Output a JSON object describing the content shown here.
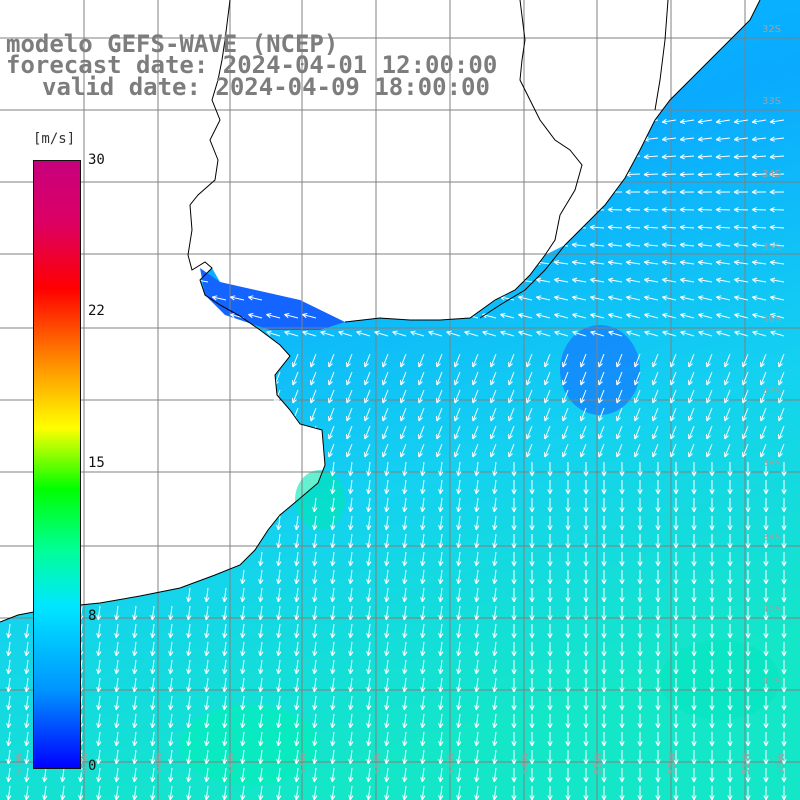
{
  "title": {
    "line1": "modelo GEFS-WAVE (NCEP)",
    "line2": "forecast date: 2024-04-01 12:00:00",
    "line3": "valid date: 2024-04-09 18:00:00"
  },
  "colorbar": {
    "units": "[m/s]",
    "ticks": [
      "30",
      "22",
      "15",
      "8",
      "0"
    ],
    "tick_values": [
      30,
      22,
      15,
      8,
      0
    ],
    "colors": [
      "#0000ff",
      "#0096ff",
      "#00e6ff",
      "#00ff96",
      "#00ff00",
      "#ffff00",
      "#ff9600",
      "#ff0000",
      "#dc0064",
      "#c8007d"
    ]
  },
  "map": {
    "variable": "wind speed",
    "lat_labels": [
      "32S",
      "33S",
      "34S",
      "35S",
      "36S",
      "37S",
      "38S",
      "39S",
      "40S",
      "41S"
    ],
    "lon_labels": [
      "61W",
      "60W",
      "59W",
      "58W",
      "57W",
      "56W",
      "55W",
      "54W",
      "53W",
      "52W",
      "51W",
      "50W"
    ],
    "land_color": "#ffffff",
    "coast_color": "#000000",
    "grid_color": "#808080",
    "arrow_color": "#ffffff",
    "arrow_direction": "mostly toward south-southwest, westward near the coast"
  }
}
